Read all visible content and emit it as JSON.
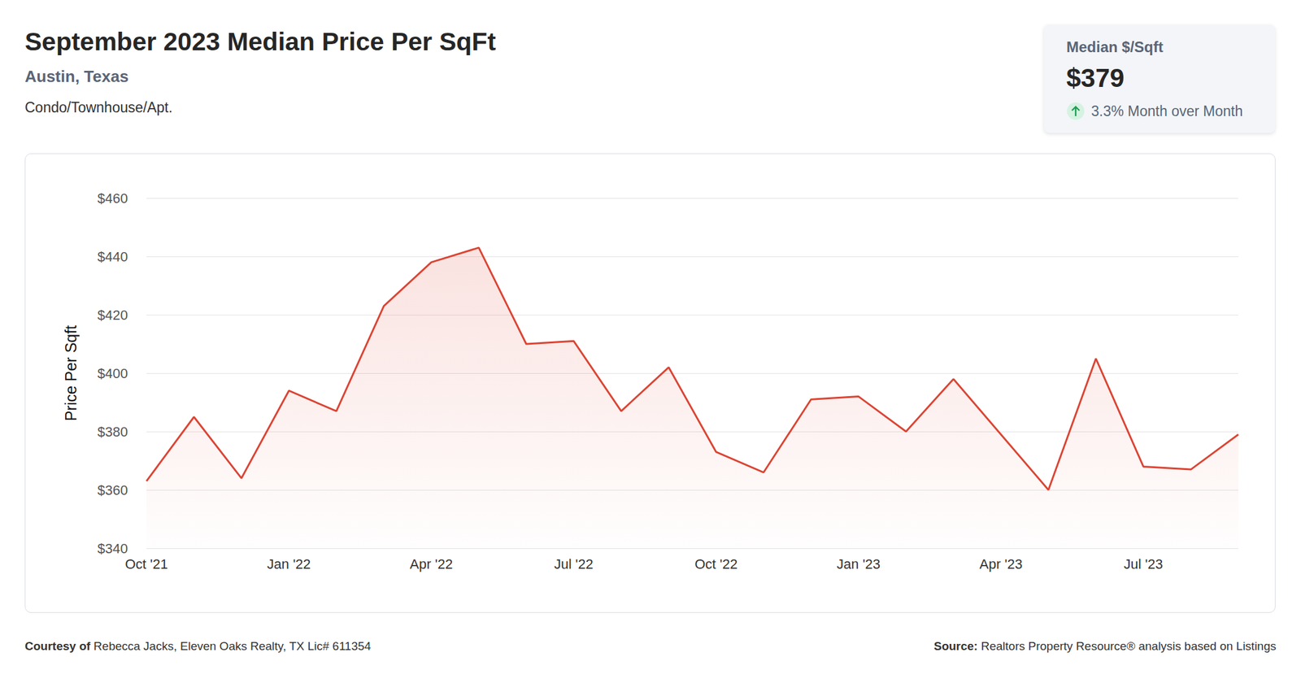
{
  "header": {
    "title": "September 2023 Median Price Per SqFt",
    "location": "Austin, Texas",
    "property_type": "Condo/Townhouse/Apt."
  },
  "stat_card": {
    "label": "Median $/Sqft",
    "value": "$379",
    "change": "3.3% Month over Month"
  },
  "footer": {
    "courtesy_label": "Courtesy of",
    "courtesy": "Rebecca Jacks, Eleven Oaks Realty, TX Lic# 611354",
    "source_label": "Source:",
    "source": "Realtors Property Resource® analysis based on Listings"
  },
  "chart_data": {
    "type": "line",
    "y_label": "Price Per Sqft",
    "categories": [
      "Oct '21",
      null,
      null,
      "Jan '22",
      null,
      null,
      "Apr '22",
      null,
      null,
      "Jul '22",
      null,
      null,
      "Oct '22",
      null,
      null,
      "Jan '23",
      null,
      null,
      "Apr '23",
      null,
      null,
      "Jul '23",
      null,
      null
    ],
    "values": [
      363,
      385,
      364,
      394,
      387,
      423,
      438,
      443,
      410,
      411,
      387,
      402,
      373,
      366,
      391,
      392,
      380,
      398,
      379,
      360,
      405,
      368,
      367,
      379
    ],
    "color": "#dc4433",
    "ylim": [
      340,
      460
    ],
    "yticks": [
      {
        "value": 340,
        "label": "$340"
      },
      {
        "value": 360,
        "label": "$360"
      },
      {
        "value": 380,
        "label": "$380"
      },
      {
        "value": 400,
        "label": "$400"
      },
      {
        "value": 420,
        "label": "$420"
      },
      {
        "value": 440,
        "label": "$440"
      },
      {
        "value": 460,
        "label": "$460"
      }
    ],
    "grid": true
  }
}
